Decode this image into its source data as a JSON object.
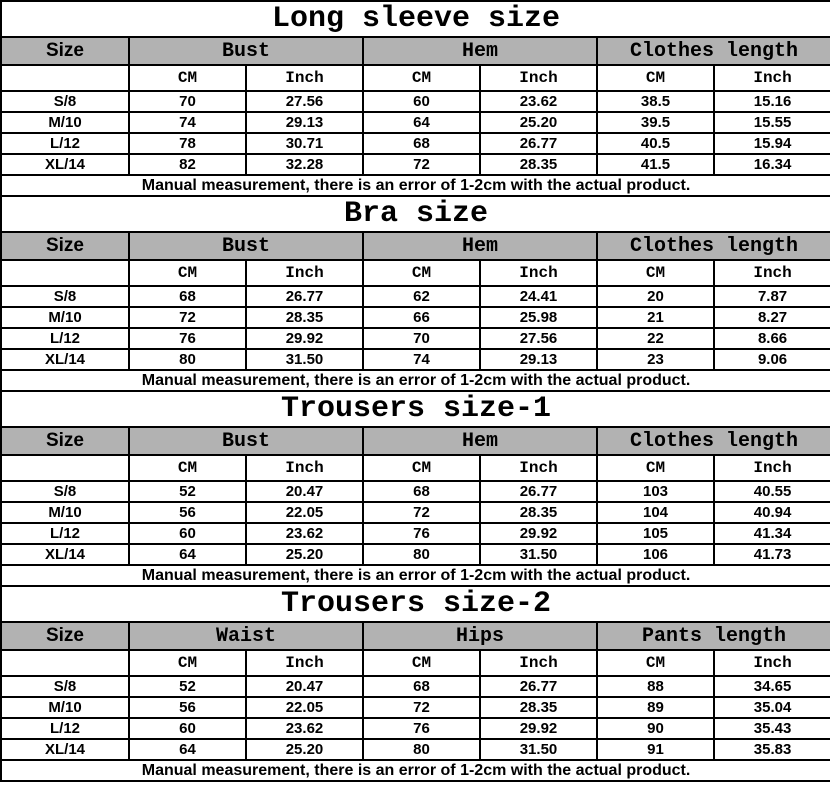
{
  "colors": {
    "header_bg": "#b2b2b2",
    "border": "#000000",
    "text": "#000000"
  },
  "units": {
    "cm": "CM",
    "inch": "Inch"
  },
  "chart_data": [
    {
      "type": "table",
      "title": "Long sleeve size",
      "row_header": "Size",
      "column_groups": [
        "Bust",
        "Hem",
        "Clothes length"
      ],
      "sub_columns": [
        "CM",
        "Inch"
      ],
      "rows": [
        [
          "S/8",
          "70",
          "27.56",
          "60",
          "23.62",
          "38.5",
          "15.16"
        ],
        [
          "M/10",
          "74",
          "29.13",
          "64",
          "25.20",
          "39.5",
          "15.55"
        ],
        [
          "L/12",
          "78",
          "30.71",
          "68",
          "26.77",
          "40.5",
          "15.94"
        ],
        [
          "XL/14",
          "82",
          "32.28",
          "72",
          "28.35",
          "41.5",
          "16.34"
        ]
      ],
      "note": "Manual measurement, there is an error of 1-2cm with the actual product."
    },
    {
      "type": "table",
      "title": "Bra size",
      "row_header": "Size",
      "column_groups": [
        "Bust",
        "Hem",
        "Clothes length"
      ],
      "sub_columns": [
        "CM",
        "Inch"
      ],
      "rows": [
        [
          "S/8",
          "68",
          "26.77",
          "62",
          "24.41",
          "20",
          "7.87"
        ],
        [
          "M/10",
          "72",
          "28.35",
          "66",
          "25.98",
          "21",
          "8.27"
        ],
        [
          "L/12",
          "76",
          "29.92",
          "70",
          "27.56",
          "22",
          "8.66"
        ],
        [
          "XL/14",
          "80",
          "31.50",
          "74",
          "29.13",
          "23",
          "9.06"
        ]
      ],
      "note": "Manual measurement, there is an error of 1-2cm with the actual product."
    },
    {
      "type": "table",
      "title": "Trousers size-1",
      "row_header": "Size",
      "column_groups": [
        "Bust",
        "Hem",
        "Clothes length"
      ],
      "sub_columns": [
        "CM",
        "Inch"
      ],
      "rows": [
        [
          "S/8",
          "52",
          "20.47",
          "68",
          "26.77",
          "103",
          "40.55"
        ],
        [
          "M/10",
          "56",
          "22.05",
          "72",
          "28.35",
          "104",
          "40.94"
        ],
        [
          "L/12",
          "60",
          "23.62",
          "76",
          "29.92",
          "105",
          "41.34"
        ],
        [
          "XL/14",
          "64",
          "25.20",
          "80",
          "31.50",
          "106",
          "41.73"
        ]
      ],
      "note": "Manual measurement, there is an error of 1-2cm with the actual product."
    },
    {
      "type": "table",
      "title": "Trousers size-2",
      "row_header": "Size",
      "column_groups": [
        "Waist",
        "Hips",
        "Pants length"
      ],
      "sub_columns": [
        "CM",
        "Inch"
      ],
      "rows": [
        [
          "S/8",
          "52",
          "20.47",
          "68",
          "26.77",
          "88",
          "34.65"
        ],
        [
          "M/10",
          "56",
          "22.05",
          "72",
          "28.35",
          "89",
          "35.04"
        ],
        [
          "L/12",
          "60",
          "23.62",
          "76",
          "29.92",
          "90",
          "35.43"
        ],
        [
          "XL/14",
          "64",
          "25.20",
          "80",
          "31.50",
          "91",
          "35.83"
        ]
      ],
      "note": "Manual measurement, there is an error of 1-2cm with the actual product."
    }
  ]
}
